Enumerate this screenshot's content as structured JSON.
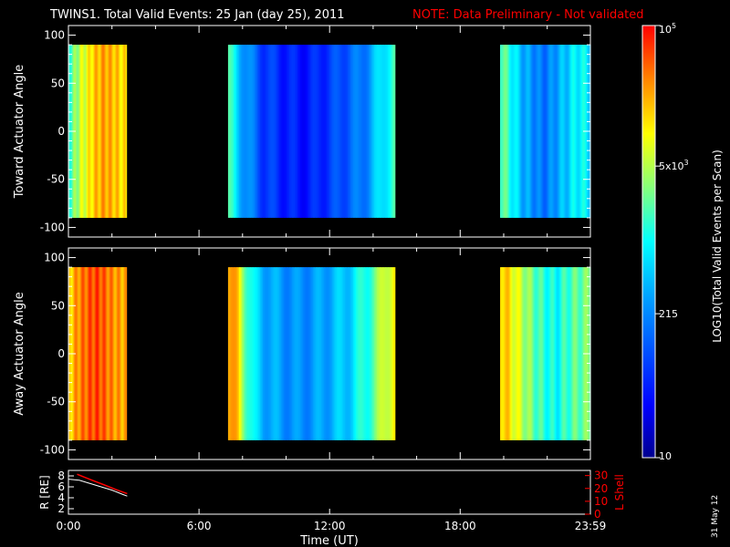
{
  "header": {
    "title": "TWINS1. Total Valid Events: 25 Jan (day  25), 2011",
    "note": "NOTE: Data Preliminary - Not validated",
    "note_color": "#ff0000"
  },
  "footer": {
    "date_stamp": "31 May 12"
  },
  "chart_data": [
    {
      "type": "heatmap",
      "ylabel": "Toward Actuator Angle",
      "xlim": [
        "0:00",
        "23:59"
      ],
      "ylim": [
        -110,
        110
      ],
      "y_ticks": [
        "100",
        "50",
        "0",
        "-50",
        "-100"
      ],
      "y_bins": [
        -90,
        90
      ],
      "data_blocks": [
        {
          "start": "0:00",
          "end": "2:40",
          "intensity_profile": [
            0.55,
            0.6,
            0.65,
            0.7,
            0.72,
            0.76,
            0.8,
            0.82,
            0.84,
            0.85,
            0.83,
            0.82,
            0.8,
            0.78,
            0.77
          ]
        },
        {
          "start": "7:20",
          "end": "15:00",
          "intensity_profile": [
            0.55,
            0.45,
            0.35,
            0.28,
            0.22,
            0.2,
            0.18,
            0.17,
            0.15,
            0.16,
            0.17,
            0.2,
            0.22,
            0.25,
            0.28,
            0.3,
            0.35,
            0.42,
            0.5,
            0.55
          ]
        },
        {
          "start": "19:50",
          "end": "23:59",
          "intensity_profile": [
            0.6,
            0.55,
            0.45,
            0.38,
            0.35,
            0.3,
            0.32,
            0.38,
            0.42,
            0.48,
            0.5,
            0.45
          ]
        }
      ]
    },
    {
      "type": "heatmap",
      "ylabel": "Away Actuator Angle",
      "xlim": [
        "0:00",
        "23:59"
      ],
      "ylim": [
        -110,
        110
      ],
      "y_ticks": [
        "100",
        "50",
        "0",
        "-50",
        "-100"
      ],
      "y_bins": [
        -90,
        90
      ],
      "data_blocks": [
        {
          "start": "0:00",
          "end": "2:40",
          "intensity_profile": [
            0.78,
            0.82,
            0.86,
            0.88,
            0.9,
            0.92,
            0.93,
            0.94,
            0.92,
            0.9,
            0.88,
            0.86,
            0.85,
            0.84,
            0.83
          ]
        },
        {
          "start": "7:20",
          "end": "15:00",
          "intensity_profile": [
            0.85,
            0.8,
            0.6,
            0.45,
            0.4,
            0.38,
            0.36,
            0.35,
            0.34,
            0.35,
            0.36,
            0.38,
            0.4,
            0.42,
            0.45,
            0.5,
            0.55,
            0.62,
            0.7,
            0.78
          ]
        },
        {
          "start": "19:50",
          "end": "23:59",
          "intensity_profile": [
            0.82,
            0.78,
            0.72,
            0.66,
            0.6,
            0.55,
            0.52,
            0.5,
            0.55,
            0.58,
            0.6,
            0.62
          ]
        }
      ]
    },
    {
      "type": "line",
      "ylabel": "R [RE]",
      "ylabel_right": "L Shell",
      "xlabel": "Time (UT)",
      "x_ticks": [
        "0:00",
        "6:00",
        "12:00",
        "18:00",
        "23:59"
      ],
      "ylim": [
        1,
        9
      ],
      "y_ticks": [
        "8",
        "6",
        "4",
        "2"
      ],
      "ylim_right": [
        0,
        34
      ],
      "y_ticks_right": [
        "30",
        "20",
        "10",
        "0"
      ],
      "series": [
        {
          "color": "#ffffff",
          "x": [
            0.0,
            0.5,
            1.0,
            1.5,
            2.0,
            2.5,
            2.7
          ],
          "y": [
            7.4,
            7.2,
            6.6,
            6.0,
            5.4,
            4.6,
            4.3
          ]
        },
        {
          "color": "#ff0000",
          "x": [
            0.4,
            1.0,
            1.6,
            2.2,
            2.7
          ],
          "y": [
            31.0,
            27.0,
            23.0,
            19.0,
            16.0
          ]
        }
      ]
    }
  ],
  "colorbar": {
    "label": "LOG10(Total Valid Events per Scan)",
    "scale": "log",
    "range": [
      10,
      100000
    ],
    "tick_labels": [
      "10",
      "215",
      "5x10^3",
      "10^5"
    ],
    "tick_values": [
      10,
      215,
      5000,
      100000
    ]
  }
}
